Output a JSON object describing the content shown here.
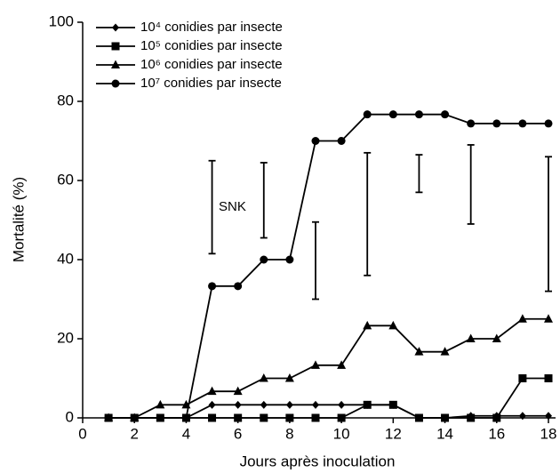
{
  "chart_data": {
    "type": "line",
    "xlabel": "Jours après inoculation",
    "ylabel": "Mortalité (%)",
    "xlim": [
      0,
      18
    ],
    "xticks": [
      0,
      2,
      4,
      6,
      8,
      10,
      12,
      14,
      16,
      18
    ],
    "ylim": [
      0,
      100
    ],
    "yticks": [
      0,
      20,
      40,
      60,
      80,
      100
    ],
    "x": [
      1,
      2,
      3,
      4,
      5,
      6,
      7,
      8,
      9,
      10,
      11,
      12,
      13,
      14,
      15,
      16,
      17,
      18
    ],
    "legend": "upper left",
    "series": [
      {
        "name": "10⁴ conidies par insecte",
        "color": "#000000",
        "marker": "diamond",
        "values": [
          0,
          0,
          0,
          0,
          3.3,
          3.3,
          3.3,
          3.3,
          3.3,
          3.3,
          3.3,
          3.3,
          0,
          0,
          0.5,
          0.5,
          0.5,
          0.5
        ]
      },
      {
        "name": "10⁵ conidies par insecte",
        "color": "#000000",
        "marker": "square",
        "values": [
          0,
          0,
          0,
          0,
          0,
          0,
          0,
          0,
          0,
          0,
          3.3,
          3.3,
          0,
          0,
          0,
          0,
          10,
          10
        ]
      },
      {
        "name": "10⁶ conidies par insecte",
        "color": "#000000",
        "marker": "triangle",
        "values": [
          0,
          0,
          3.3,
          3.3,
          6.7,
          6.7,
          10,
          10,
          13.3,
          13.3,
          23.3,
          23.3,
          16.7,
          16.7,
          20,
          20,
          25,
          25
        ]
      },
      {
        "name": "10⁷ conidies par insecte",
        "color": "#000000",
        "marker": "circle",
        "values": [
          0,
          0,
          0,
          0,
          33.3,
          33.3,
          40,
          40,
          70,
          70,
          76.7,
          76.7,
          76.7,
          76.7,
          74.4,
          74.4,
          74.4,
          74.4
        ]
      }
    ],
    "annotation": "SNK",
    "snk_bars": [
      {
        "x": 5,
        "low": 41.5,
        "high": 65
      },
      {
        "x": 7,
        "low": 45.5,
        "high": 64.5
      },
      {
        "x": 9,
        "low": 30,
        "high": 49.5
      },
      {
        "x": 11,
        "low": 36,
        "high": 67
      },
      {
        "x": 13,
        "low": 57,
        "high": 66.5
      },
      {
        "x": 15,
        "low": 49,
        "high": 69
      },
      {
        "x": 18,
        "low": 32,
        "high": 66
      }
    ]
  }
}
